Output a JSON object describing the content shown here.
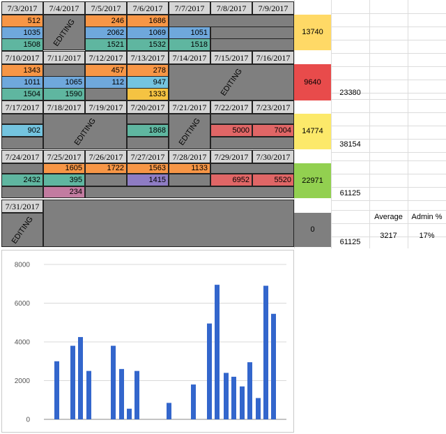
{
  "sheet": {
    "week1": {
      "dates": [
        "7/3/2017",
        "7/4/2017",
        "7/5/2017",
        "7/6/2017",
        "7/7/2017",
        "7/8/2017",
        "7/9/2017"
      ],
      "editing": "EDITING",
      "r1": [
        "512",
        "246",
        "1686"
      ],
      "r2": [
        "1035",
        "2062",
        "1069",
        "1051"
      ],
      "r3": [
        "1508",
        "1521",
        "1532",
        "1518"
      ],
      "total": "13740"
    },
    "week2": {
      "dates": [
        "7/10/2017",
        "7/11/2017",
        "7/12/2017",
        "7/13/2017",
        "7/14/2017",
        "7/15/2017",
        "7/16/2017"
      ],
      "editing": "EDITING",
      "r1": [
        "1343",
        "457",
        "278"
      ],
      "r2": [
        "1011",
        "1065",
        "112",
        "947"
      ],
      "r3": [
        "1504",
        "1590",
        "1333"
      ],
      "total": "9640",
      "cumulative": "23380"
    },
    "week3": {
      "dates": [
        "7/17/2017",
        "7/18/2017",
        "7/19/2017",
        "7/20/2017",
        "7/21/2017",
        "7/22/2017",
        "7/23/2017"
      ],
      "editing1": "EDITING",
      "editing2": "EDITING",
      "r1": [
        "902",
        "1868",
        "5000",
        "7004"
      ],
      "total": "14774",
      "cumulative": "38154"
    },
    "week4": {
      "dates": [
        "7/24/2017",
        "7/25/2017",
        "7/26/2017",
        "7/27/2017",
        "7/28/2017",
        "7/29/2017",
        "7/30/2017"
      ],
      "r1": [
        "1605",
        "1722",
        "1563",
        "1133"
      ],
      "r2": [
        "2432",
        "395",
        "1415",
        "6952",
        "5520"
      ],
      "r3": [
        "234"
      ],
      "total": "22971",
      "cumulative": "61125"
    },
    "week5": {
      "dates": [
        "7/31/2017"
      ],
      "editing": "EDITING",
      "total": "0",
      "cumulative": "61125"
    },
    "stats": {
      "average_label": "Average",
      "admin_label": "Admin %",
      "average_value": "3217",
      "admin_value": "17%"
    },
    "colors": {
      "orange": "#f79646",
      "blue": "#6fa8dc",
      "teal": "#5fb6a0",
      "gold": "#f5c342",
      "lightblue": "#74c4df",
      "red": "#e06666",
      "purple": "#8e7cc3",
      "pink": "#c27ba0",
      "total_orange": "#ffd966",
      "total_red": "#e84b4b",
      "total_yellow": "#fce96a",
      "total_green": "#92d050",
      "gray": "#7f7f7f"
    }
  },
  "chart_data": {
    "type": "bar",
    "values": [
      3000,
      3800,
      4250,
      2500,
      3800,
      2600,
      550,
      2500,
      850,
      1800,
      4950,
      6950,
      2400,
      2200,
      1700,
      2950,
      1100,
      6900,
      5450
    ],
    "ylim": [
      0,
      8000
    ],
    "yticks": [
      "0",
      "2000",
      "4000",
      "6000",
      "8000"
    ],
    "grid": true,
    "bar_color": "#3366cc"
  }
}
